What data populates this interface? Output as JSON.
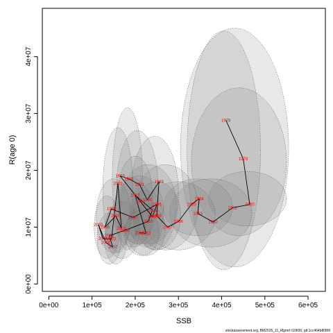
{
  "chart_data": {
    "type": "scatter",
    "title": "",
    "xlabel": "SSB",
    "ylabel": "R(age 0)",
    "xlim": [
      -15000.0,
      640000.0
    ],
    "ylim": [
      -1300000.0,
      48500000.0
    ],
    "x_ticks": [
      {
        "value": 0,
        "label": "0e+00"
      },
      {
        "value": 100000,
        "label": "1e+05"
      },
      {
        "value": 200000,
        "label": "2e+05"
      },
      {
        "value": 300000,
        "label": "3e+05"
      },
      {
        "value": 400000,
        "label": "4e+05"
      },
      {
        "value": 500000,
        "label": "5e+05"
      },
      {
        "value": 600000,
        "label": "6e+05"
      }
    ],
    "y_ticks": [
      {
        "value": 0,
        "label": "0e+00"
      },
      {
        "value": 10000000,
        "label": "1e+07"
      },
      {
        "value": 20000000,
        "label": "2e+07"
      },
      {
        "value": 30000000,
        "label": "3e+07"
      },
      {
        "value": 40000000,
        "label": "4e+07"
      }
    ],
    "grid": false,
    "series": [
      {
        "points": [
          {
            "label": "1978",
            "x": 410000,
            "y": 28800000
          },
          {
            "label": "1979",
            "x": 450000,
            "y": 22000000
          },
          {
            "label": "1980",
            "x": 465000,
            "y": 14000000
          },
          {
            "label": "1981",
            "x": 425000,
            "y": 13400000
          },
          {
            "label": "1982",
            "x": 380000,
            "y": 10900000
          },
          {
            "label": "1983",
            "x": 345000,
            "y": 12400000
          },
          {
            "label": "1984",
            "x": 348000,
            "y": 15000000
          },
          {
            "label": "1985",
            "x": 330000,
            "y": 14000000
          },
          {
            "label": "1986",
            "x": 300000,
            "y": 11000000
          },
          {
            "label": "1987",
            "x": 275000,
            "y": 10000000
          },
          {
            "label": "1988",
            "x": 250000,
            "y": 12000000
          },
          {
            "label": "1989",
            "x": 255000,
            "y": 18000000
          },
          {
            "label": "1990",
            "x": 228000,
            "y": 14800000
          },
          {
            "label": "1991",
            "x": 210000,
            "y": 17500000
          },
          {
            "label": "1992",
            "x": 185000,
            "y": 18500000
          },
          {
            "label": "1993",
            "x": 165000,
            "y": 19000000
          },
          {
            "label": "1994",
            "x": 212000,
            "y": 14500000
          },
          {
            "label": "1995",
            "x": 240000,
            "y": 11800000
          },
          {
            "label": "1996",
            "x": 250000,
            "y": 14000000
          },
          {
            "label": "1997",
            "x": 195000,
            "y": 11700000
          },
          {
            "label": "1998",
            "x": 145000,
            "y": 13200000
          },
          {
            "label": "1999",
            "x": 130000,
            "y": 10000000
          },
          {
            "label": "2000",
            "x": 155000,
            "y": 12000000
          },
          {
            "label": "2001",
            "x": 168000,
            "y": 9800000
          },
          {
            "label": "2002",
            "x": 160000,
            "y": 17700000
          },
          {
            "label": "2003",
            "x": 145000,
            "y": 7900000
          },
          {
            "label": "2004",
            "x": 125000,
            "y": 8000000
          },
          {
            "label": "2005",
            "x": 115000,
            "y": 10400000
          },
          {
            "label": "2006",
            "x": 132000,
            "y": 7300000
          },
          {
            "label": "2007",
            "x": 148000,
            "y": 6500000
          },
          {
            "label": "2008",
            "x": 140000,
            "y": 8500000
          },
          {
            "label": "2009",
            "x": 175000,
            "y": 9400000
          },
          {
            "label": "2010",
            "x": 230000,
            "y": 11000000
          },
          {
            "label": "2011",
            "x": 240000,
            "y": 13000000
          },
          {
            "label": "2012",
            "x": 200000,
            "y": 15600000
          },
          {
            "label": "2013",
            "x": 225000,
            "y": 8900000
          },
          {
            "label": "2014",
            "x": 210000,
            "y": 9000000
          }
        ]
      }
    ],
    "uncertainty_ellipses": [
      {
        "cx": 430000,
        "cy": 24000000,
        "rx": 125000,
        "ry": 21000000
      },
      {
        "cx": 405000,
        "cy": 23500000,
        "rx": 85000,
        "ry": 21000000
      },
      {
        "cx": 440000,
        "cy": 21500000,
        "rx": 110000,
        "ry": 13000000
      },
      {
        "cx": 460000,
        "cy": 15000000,
        "rx": 90000,
        "ry": 4800000
      },
      {
        "cx": 375000,
        "cy": 12500000,
        "rx": 95000,
        "ry": 6000000
      },
      {
        "cx": 345000,
        "cy": 13500000,
        "rx": 80000,
        "ry": 5000000
      },
      {
        "cx": 300000,
        "cy": 12000000,
        "rx": 85000,
        "ry": 6000000
      },
      {
        "cx": 270000,
        "cy": 13500000,
        "rx": 75000,
        "ry": 7500000
      },
      {
        "cx": 245000,
        "cy": 16000000,
        "rx": 55000,
        "ry": 10000000
      },
      {
        "cx": 230000,
        "cy": 14000000,
        "rx": 65000,
        "ry": 7000000
      },
      {
        "cx": 205000,
        "cy": 17000000,
        "rx": 48000,
        "ry": 10000000
      },
      {
        "cx": 182000,
        "cy": 18500000,
        "rx": 35000,
        "ry": 12500000
      },
      {
        "cx": 160000,
        "cy": 16500000,
        "rx": 35000,
        "ry": 11000000
      },
      {
        "cx": 210000,
        "cy": 13000000,
        "rx": 55000,
        "ry": 6000000
      },
      {
        "cx": 225000,
        "cy": 11500000,
        "rx": 40000,
        "ry": 5000000
      },
      {
        "cx": 195000,
        "cy": 12500000,
        "rx": 45000,
        "ry": 6000000
      },
      {
        "cx": 150000,
        "cy": 12000000,
        "rx": 40000,
        "ry": 6500000
      },
      {
        "cx": 135000,
        "cy": 10000000,
        "rx": 30000,
        "ry": 5500000
      },
      {
        "cx": 140000,
        "cy": 8000000,
        "rx": 28000,
        "ry": 4500000
      },
      {
        "cx": 155000,
        "cy": 7500000,
        "rx": 25000,
        "ry": 4000000
      },
      {
        "cx": 170000,
        "cy": 9500000,
        "rx": 40000,
        "ry": 5000000
      },
      {
        "cx": 225000,
        "cy": 9500000,
        "rx": 45000,
        "ry": 4500000
      },
      {
        "cx": 250000,
        "cy": 12000000,
        "rx": 55000,
        "ry": 6000000
      },
      {
        "cx": 200000,
        "cy": 15500000,
        "rx": 40000,
        "ry": 7000000
      },
      {
        "cx": 215000,
        "cy": 9000000,
        "rx": 40000,
        "ry": 4000000
      }
    ]
  },
  "footer": {
    "source_note": "stockassessment.org, BM2025_11_Mgmrt r19600, git:1cc464b8086f"
  }
}
